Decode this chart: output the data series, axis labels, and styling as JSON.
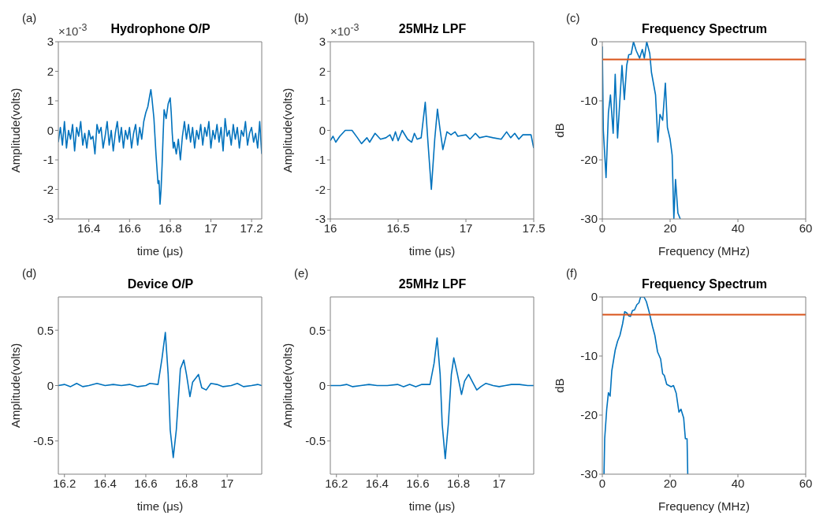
{
  "chart_data": [
    {
      "type": "line",
      "title": "Hydrophone O/P",
      "xlabel": "time (μs)",
      "ylabel": "Amplitude(volts)",
      "annotations": [
        "(a)",
        "×10$^{-3}$"
      ],
      "xlim": [
        16.25,
        17.25
      ],
      "xticks": [
        16.4,
        16.6,
        16.8,
        17,
        17.2
      ],
      "ylim": [
        -3,
        3
      ],
      "yticks": [
        -3,
        -2,
        -1,
        0,
        1,
        2,
        3
      ],
      "series": [
        {
          "color": "#0072bd",
          "x": [
            16.25,
            16.26,
            16.27,
            16.28,
            16.29,
            16.3,
            16.31,
            16.32,
            16.33,
            16.34,
            16.35,
            16.36,
            16.37,
            16.38,
            16.39,
            16.4,
            16.41,
            16.42,
            16.43,
            16.44,
            16.45,
            16.46,
            16.47,
            16.48,
            16.49,
            16.5,
            16.51,
            16.52,
            16.53,
            16.54,
            16.55,
            16.56,
            16.57,
            16.58,
            16.59,
            16.6,
            16.61,
            16.62,
            16.63,
            16.64,
            16.65,
            16.66,
            16.67,
            16.68,
            16.69,
            16.7,
            16.705,
            16.71,
            16.72,
            16.73,
            16.735,
            16.74,
            16.745,
            16.75,
            16.755,
            16.76,
            16.765,
            16.77,
            16.78,
            16.79,
            16.8,
            16.805,
            16.81,
            16.815,
            16.82,
            16.83,
            16.84,
            16.85,
            16.86,
            16.87,
            16.88,
            16.89,
            16.9,
            16.91,
            16.92,
            16.93,
            16.94,
            16.95,
            16.96,
            16.97,
            16.98,
            16.99,
            17,
            17.01,
            17.02,
            17.03,
            17.04,
            17.05,
            17.06,
            17.07,
            17.08,
            17.09,
            17.1,
            17.11,
            17.12,
            17.13,
            17.14,
            17.15,
            17.16,
            17.17,
            17.18,
            17.19,
            17.2,
            17.21,
            17.22,
            17.23,
            17.24,
            17.25
          ],
          "values": [
            -0.4,
            0.1,
            -0.5,
            0.3,
            -0.6,
            0,
            -0.3,
            0.2,
            -0.7,
            0.1,
            -0.2,
            0.3,
            -0.5,
            -0.1,
            -0.6,
            0,
            -0.3,
            -0.2,
            -0.8,
            0.2,
            -0.1,
            0.1,
            -0.6,
            -0.2,
            0.3,
            -0.5,
            0,
            -0.7,
            -0.1,
            0.3,
            -0.4,
            0.1,
            -0.6,
            0,
            -0.3,
            0.1,
            -0.6,
            -0.1,
            0.2,
            -0.5,
            0.1,
            -0.3,
            0.3,
            0.6,
            0.8,
            1.2,
            1.38,
            1.1,
            0.4,
            -0.8,
            -1.3,
            -1.8,
            -1.7,
            -2.5,
            -2,
            -1.2,
            -0.2,
            0.7,
            0.4,
            0.9,
            1.1,
            0.6,
            -0.1,
            -0.6,
            -0.4,
            -0.8,
            -0.3,
            -1,
            -0.2,
            0.3,
            -0.3,
            0.2,
            -0.4,
            0.1,
            -0.6,
            0,
            -0.3,
            0.2,
            -0.5,
            0.1,
            -0.2,
            0.3,
            -0.6,
            0,
            -0.3,
            0.2,
            -0.4,
            0.1,
            -0.7,
            0.4,
            -0.2,
            0,
            -0.5,
            0.2,
            -0.3,
            0.1,
            -0.6,
            0,
            -0.2,
            0.3,
            -0.5,
            -0.1,
            0.1,
            -0.4,
            -0.1,
            -0.6,
            0.3,
            -0.8
          ]
        }
      ]
    },
    {
      "type": "line",
      "title": "25MHz LPF",
      "xlabel": "time (μs)",
      "ylabel": "Amplitude(volts)",
      "annotations": [
        "(b)",
        "×10$^{-3}$"
      ],
      "xlim": [
        16,
        17.5
      ],
      "xticks": [
        16,
        16.5,
        17,
        17.5
      ],
      "ylim": [
        -3,
        3
      ],
      "yticks": [
        -3,
        -2,
        -1,
        0,
        1,
        2,
        3
      ],
      "series": [
        {
          "color": "#0072bd",
          "x": [
            16,
            16.02,
            16.04,
            16.07,
            16.11,
            16.16,
            16.2,
            16.23,
            16.27,
            16.29,
            16.33,
            16.37,
            16.41,
            16.44,
            16.46,
            16.48,
            16.5,
            16.53,
            16.57,
            16.6,
            16.62,
            16.64,
            16.67,
            16.7,
            16.72,
            16.745,
            16.77,
            16.79,
            16.81,
            16.83,
            16.86,
            16.89,
            16.92,
            16.94,
            17,
            17.03,
            17.07,
            17.1,
            17.15,
            17.2,
            17.26,
            17.3,
            17.33,
            17.36,
            17.39,
            17.42,
            17.48,
            17.5
          ],
          "values": [
            -0.35,
            -0.2,
            -0.4,
            -0.2,
            0,
            0,
            -0.25,
            -0.45,
            -0.25,
            -0.4,
            -0.1,
            -0.3,
            -0.25,
            -0.15,
            -0.35,
            -0.05,
            -0.35,
            0,
            -0.3,
            -0.4,
            -0.1,
            -0.3,
            -0.25,
            0.95,
            -0.4,
            -2,
            -0.3,
            0.72,
            0,
            -0.65,
            -0.05,
            -0.15,
            -0.05,
            -0.2,
            -0.15,
            -0.3,
            -0.1,
            -0.25,
            -0.2,
            -0.25,
            -0.3,
            -0.05,
            -0.25,
            -0.1,
            -0.3,
            -0.15,
            -0.15,
            -0.6
          ]
        }
      ]
    },
    {
      "type": "line",
      "title": "Frequency Spectrum",
      "xlabel": "Frequency (MHz)",
      "ylabel": "dB",
      "annotations": [
        "(c)"
      ],
      "xlim": [
        0,
        60
      ],
      "xticks": [
        0,
        20,
        40,
        60
      ],
      "ylim": [
        -30,
        0
      ],
      "yticks": [
        -30,
        -20,
        -10,
        0
      ],
      "ref_lines": [
        {
          "axis": "y",
          "value": -3,
          "color": "#d95319"
        }
      ],
      "series": [
        {
          "color": "#0072bd",
          "x": [
            0,
            0.3,
            1.1,
            1.8,
            2.4,
            3.2,
            3.8,
            4.5,
            5.8,
            6.5,
            7.2,
            7.8,
            8.5,
            9.2,
            10,
            11,
            11.8,
            12.4,
            13.1,
            14,
            14.5,
            15.7,
            16.4,
            17,
            17.8,
            18.6,
            19.2,
            20,
            20.6,
            21.1,
            21.6,
            22.3,
            23
          ],
          "values": [
            -0.8,
            -15,
            -23,
            -12,
            -9,
            -15.5,
            -5.5,
            -16.3,
            -4,
            -9.8,
            -4,
            -2.2,
            -2.1,
            0,
            -1.5,
            -2.8,
            -1.3,
            -2.8,
            0,
            -2,
            -5.2,
            -9,
            -17,
            -12.3,
            -13.3,
            -7,
            -14.5,
            -16.5,
            -19.2,
            -30,
            -23.3,
            -29,
            -30
          ]
        }
      ]
    },
    {
      "type": "line",
      "title": "Device O/P",
      "xlabel": "time (μs)",
      "ylabel": "Amplitude(volts)",
      "annotations": [
        "(d)"
      ],
      "xlim": [
        16.17,
        17.17
      ],
      "xticks": [
        16.2,
        16.4,
        16.6,
        16.8,
        17
      ],
      "ylim": [
        -0.8,
        0.8
      ],
      "yticks": [
        -0.5,
        0,
        0.5
      ],
      "series": [
        {
          "color": "#0072bd",
          "x": [
            16.17,
            16.2,
            16.23,
            16.26,
            16.29,
            16.32,
            16.36,
            16.4,
            16.44,
            16.48,
            16.52,
            16.56,
            16.6,
            16.62,
            16.66,
            16.68,
            16.696,
            16.71,
            16.72,
            16.735,
            16.75,
            16.77,
            16.787,
            16.8,
            16.817,
            16.83,
            16.859,
            16.875,
            16.897,
            16.92,
            16.95,
            16.98,
            17.02,
            17.05,
            17.08,
            17.12,
            17.15,
            17.17
          ],
          "values": [
            0,
            0.01,
            -0.01,
            0.02,
            -0.01,
            0,
            0.02,
            0,
            0.01,
            0,
            0.01,
            -0.01,
            0,
            0.02,
            0.01,
            0.25,
            0.48,
            0.1,
            -0.4,
            -0.65,
            -0.4,
            0.15,
            0.23,
            0.1,
            -0.1,
            0.03,
            0.1,
            -0.02,
            -0.04,
            0.02,
            0.01,
            -0.01,
            0,
            0.02,
            -0.01,
            0,
            0.01,
            0
          ]
        }
      ]
    },
    {
      "type": "line",
      "title": "25MHz LPF",
      "xlabel": "time (μs)",
      "ylabel": "Amplitude(volts)",
      "annotations": [
        "(e)"
      ],
      "xlim": [
        16.17,
        17.17
      ],
      "xticks": [
        16.2,
        16.4,
        16.6,
        16.8,
        17
      ],
      "ylim": [
        -0.8,
        0.8
      ],
      "yticks": [
        -0.5,
        0,
        0.5
      ],
      "series": [
        {
          "color": "#0072bd",
          "x": [
            16.17,
            16.22,
            16.25,
            16.28,
            16.32,
            16.36,
            16.4,
            16.45,
            16.5,
            16.53,
            16.56,
            16.59,
            16.62,
            16.66,
            16.68,
            16.695,
            16.71,
            16.72,
            16.735,
            16.75,
            16.765,
            16.777,
            16.795,
            16.815,
            16.83,
            16.85,
            16.87,
            16.89,
            16.91,
            16.935,
            16.97,
            17,
            17.03,
            17.06,
            17.1,
            17.14,
            17.17
          ],
          "values": [
            0,
            0,
            0.01,
            -0.01,
            0,
            0.01,
            0,
            0,
            0.01,
            -0.01,
            0.01,
            -0.01,
            0.01,
            0.01,
            0.2,
            0.43,
            0.1,
            -0.35,
            -0.66,
            -0.35,
            0.1,
            0.25,
            0.1,
            -0.08,
            0.04,
            0.1,
            0.03,
            -0.04,
            -0.01,
            0.02,
            0,
            -0.01,
            0,
            0.01,
            0.01,
            0,
            0
          ]
        }
      ]
    },
    {
      "type": "line",
      "title": "Frequency Spectrum",
      "xlabel": "Frequency (MHz)",
      "ylabel": "dB",
      "annotations": [
        "(f)"
      ],
      "xlim": [
        0,
        60
      ],
      "xticks": [
        0,
        20,
        40,
        60
      ],
      "ylim": [
        -30,
        0
      ],
      "yticks": [
        -30,
        -20,
        -10,
        0
      ],
      "ref_lines": [
        {
          "axis": "y",
          "value": -3,
          "color": "#d95319"
        }
      ],
      "series": [
        {
          "color": "#0072bd",
          "x": [
            0.5,
            0.7,
            1.3,
            1.8,
            2.3,
            2.8,
            3.8,
            4.5,
            5.2,
            6,
            6.6,
            7.2,
            7.8,
            8.3,
            8.9,
            9.5,
            10.2,
            10.8,
            11.3,
            12.3,
            13,
            13.8,
            14.8,
            15.5,
            16.3,
            17.2,
            17.8,
            18.3,
            19,
            20.3,
            21,
            21.8,
            22.6,
            23.2,
            24,
            24.5,
            25,
            25.2
          ],
          "values": [
            -30,
            -24,
            -19,
            -16.2,
            -16.8,
            -12.5,
            -9,
            -7.5,
            -6.5,
            -4.5,
            -2.5,
            -2.7,
            -3.2,
            -3.3,
            -2.3,
            -2.2,
            -1.3,
            -1,
            0,
            0,
            -0.8,
            -2.5,
            -5,
            -6.5,
            -9.3,
            -10.5,
            -13,
            -13.3,
            -14.8,
            -15.2,
            -15,
            -16.3,
            -19.5,
            -19,
            -20.5,
            -24,
            -24,
            -30
          ]
        }
      ]
    }
  ]
}
